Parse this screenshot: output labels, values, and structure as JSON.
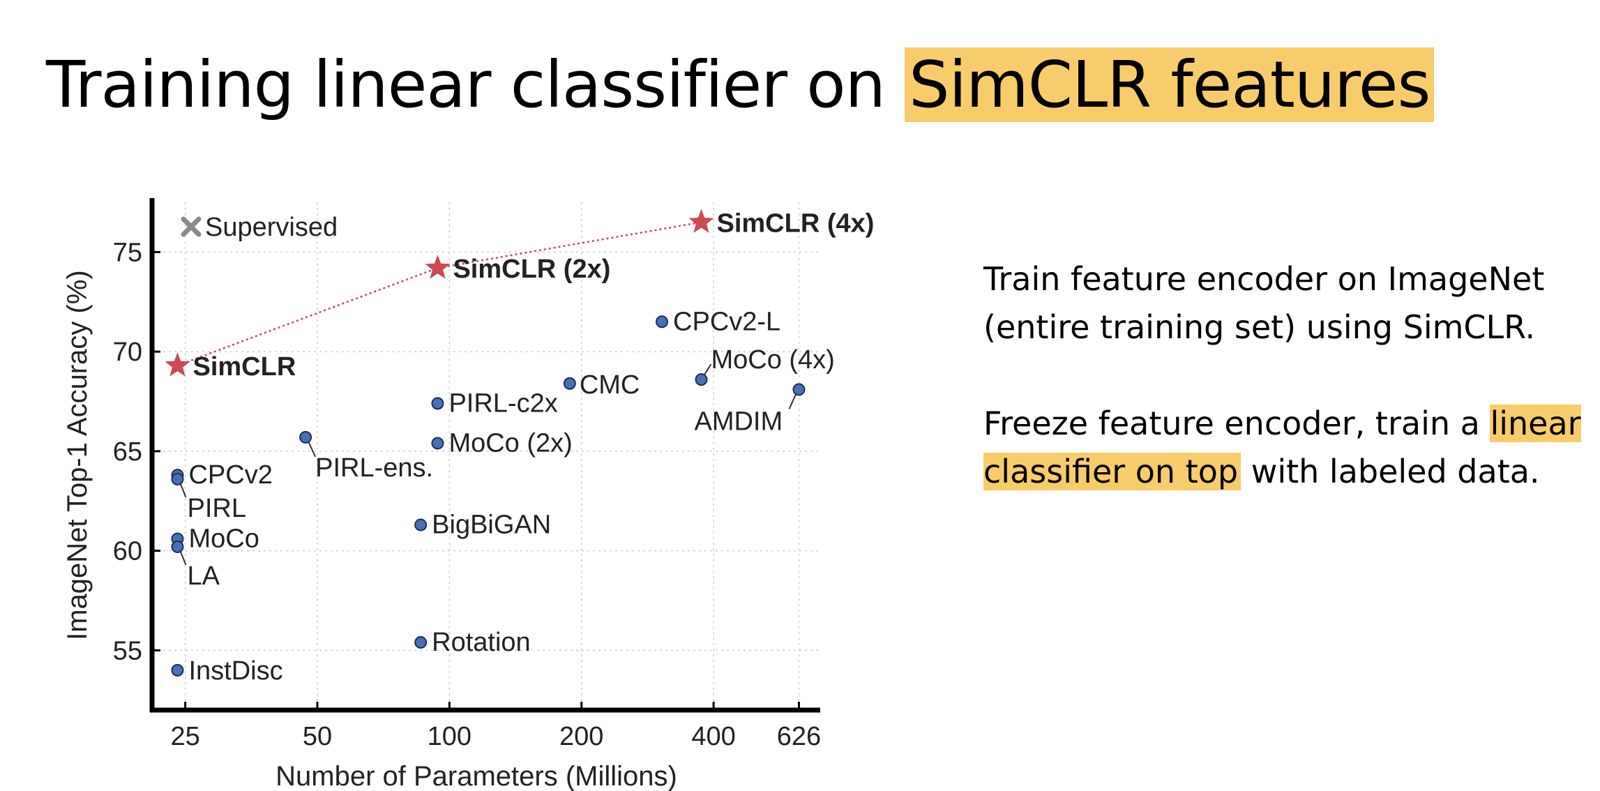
{
  "slide": {
    "title_prefix": "Training linear classifier on ",
    "title_highlight": "SimCLR features"
  },
  "bullets": [
    {
      "text": "Train feature encoder on ImageNet (entire training set) using SimCLR."
    },
    {
      "before": "Freeze feature encoder, train a ",
      "highlight": "linear classifier on top",
      "after": " with labeled data."
    }
  ],
  "colors": {
    "highlight": "#f7cd6b",
    "simclr": "#cc4a55",
    "point": "#4a6fb5",
    "supervised": "#8a8a8a"
  },
  "chart_data": {
    "type": "scatter",
    "xlabel": "Number of Parameters (Millions)",
    "ylabel": "ImageNet Top-1 Accuracy (%)",
    "x_scale": "log",
    "x_ticks": [
      25,
      50,
      100,
      200,
      400,
      626
    ],
    "y_ticks": [
      55,
      60,
      65,
      70,
      75
    ],
    "xlim": [
      21,
      700
    ],
    "ylim": [
      52,
      77.5
    ],
    "grid": true,
    "legend": {
      "label": "Supervised",
      "marker": "x",
      "placement": "top-left"
    },
    "simclr_line": [
      "SimCLR",
      "SimCLR (2x)",
      "SimCLR (4x)"
    ],
    "points": [
      {
        "label": "SimCLR",
        "x": 24,
        "y": 69.3,
        "marker": "star"
      },
      {
        "label": "SimCLR (2x)",
        "x": 94,
        "y": 74.2,
        "marker": "star"
      },
      {
        "label": "SimCLR (4x)",
        "x": 375,
        "y": 76.5,
        "marker": "star"
      },
      {
        "label": "CPCv2",
        "x": 24,
        "y": 63.8,
        "marker": "circle"
      },
      {
        "label": "PIRL",
        "x": 24,
        "y": 63.6,
        "marker": "circle"
      },
      {
        "label": "MoCo",
        "x": 24,
        "y": 60.6,
        "marker": "circle"
      },
      {
        "label": "LA",
        "x": 24,
        "y": 60.2,
        "marker": "circle"
      },
      {
        "label": "InstDisc",
        "x": 24,
        "y": 54.0,
        "marker": "circle"
      },
      {
        "label": "PIRL-ens.",
        "x": 47,
        "y": 65.7,
        "marker": "circle"
      },
      {
        "label": "PIRL-c2x",
        "x": 94,
        "y": 67.4,
        "marker": "circle"
      },
      {
        "label": "MoCo (2x)",
        "x": 94,
        "y": 65.4,
        "marker": "circle"
      },
      {
        "label": "BigBiGAN",
        "x": 86,
        "y": 61.3,
        "marker": "circle"
      },
      {
        "label": "Rotation",
        "x": 86,
        "y": 55.4,
        "marker": "circle"
      },
      {
        "label": "CMC",
        "x": 188,
        "y": 68.4,
        "marker": "circle"
      },
      {
        "label": "CPCv2-L",
        "x": 305,
        "y": 71.5,
        "marker": "circle"
      },
      {
        "label": "MoCo (4x)",
        "x": 375,
        "y": 68.6,
        "marker": "circle"
      },
      {
        "label": "AMDIM",
        "x": 626,
        "y": 68.1,
        "marker": "circle"
      }
    ]
  }
}
